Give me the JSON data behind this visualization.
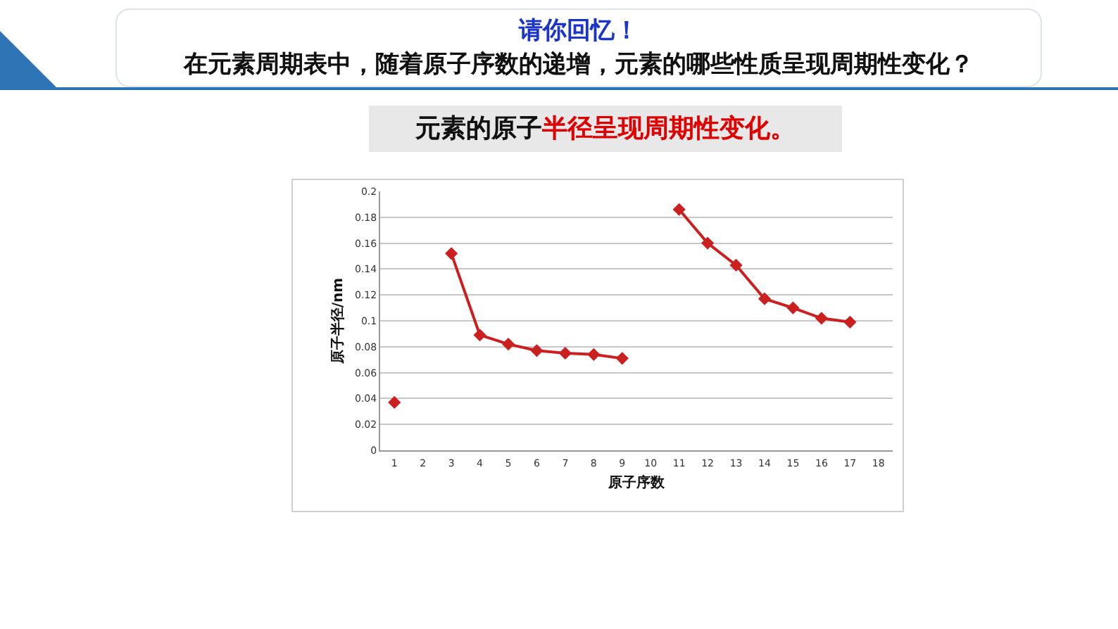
{
  "chart_data": {
    "type": "line",
    "title": "请你回忆！",
    "subtitle": "在元素周期表中，随着原子序数的递增，元素的哪些性质呈现周期性变化？",
    "annotations": [
      "元素的原子",
      "半径呈现周期性变化。"
    ],
    "xlabel": "原子序数",
    "ylabel": "原子半径/nm",
    "x": [
      1,
      2,
      3,
      4,
      5,
      6,
      7,
      8,
      9,
      10,
      11,
      12,
      13,
      14,
      15,
      16,
      17
    ],
    "xlim": [
      0.5,
      18.5
    ],
    "xticks": [
      1,
      2,
      3,
      4,
      5,
      6,
      7,
      8,
      9,
      10,
      11,
      12,
      13,
      14,
      15,
      16,
      17,
      18
    ],
    "series": [
      {
        "color": "#cc1f1f",
        "values": [
          0.037,
          null,
          0.152,
          0.089,
          0.082,
          0.077,
          0.075,
          0.074,
          0.071,
          null,
          0.186,
          0.16,
          0.143,
          0.117,
          0.11,
          0.102,
          0.099
        ]
      }
    ],
    "ylim": [
      0,
      0.2
    ],
    "yticks": [
      0,
      0.02,
      0.04,
      0.06,
      0.08,
      {
        "value": 0.1,
        "label": "0.1"
      },
      0.12,
      0.14,
      0.16,
      0.18,
      {
        "value": 0.2,
        "label": "0.2"
      }
    ],
    "grid": "y",
    "legend": false,
    "marker": "diamond",
    "line_style": "solid"
  }
}
